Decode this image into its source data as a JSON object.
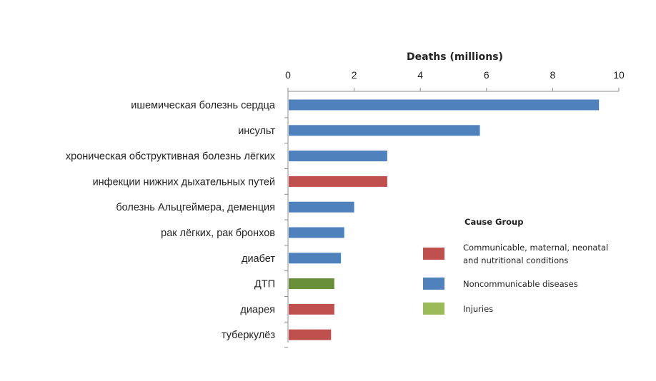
{
  "chart_data": {
    "type": "bar",
    "orientation": "horizontal",
    "xlabel": "Deaths (millions)",
    "xlim": [
      0,
      10
    ],
    "xticks": [
      "0",
      "2",
      "4",
      "6",
      "8",
      "10"
    ],
    "categories": [
      "ишемическая болезнь сердца",
      "инсульт",
      "хроническая обструктивная болезнь лёгких",
      "инфекции нижних дыхательных путей",
      "болезнь Альцгеймера, деменция",
      "рак лёгких, рак бронхов",
      "диабет",
      "ДТП",
      "диарея",
      "туберкулёз"
    ],
    "values": [
      9.4,
      5.8,
      3.0,
      3.0,
      2.0,
      1.7,
      1.6,
      1.4,
      1.4,
      1.3
    ],
    "groups": [
      "Noncommunicable diseases",
      "Noncommunicable diseases",
      "Noncommunicable diseases",
      "Communicable, maternal, neonatal and nutritional conditions",
      "Noncommunicable diseases",
      "Noncommunicable diseases",
      "Noncommunicable diseases",
      "Injuries",
      "Communicable, maternal, neonatal and nutritional conditions",
      "Communicable, maternal, neonatal and nutritional conditions"
    ],
    "bar_colors": [
      "#4f81bd",
      "#4f81bd",
      "#4f81bd",
      "#c0504d",
      "#4f81bd",
      "#4f81bd",
      "#4f81bd",
      "#6a8f3a",
      "#c0504d",
      "#c0504d"
    ],
    "legend": {
      "title": "Cause Group",
      "placement": "right",
      "entries": [
        {
          "label_lines": [
            "Communicable, maternal, neonatal",
            "and nutritional conditions"
          ],
          "color": "#c0504d"
        },
        {
          "label_lines": [
            "Noncommunicable diseases"
          ],
          "color": "#4f81bd"
        },
        {
          "label_lines": [
            "Injuries"
          ],
          "color": "#9bbb59"
        }
      ]
    },
    "grid": false
  }
}
